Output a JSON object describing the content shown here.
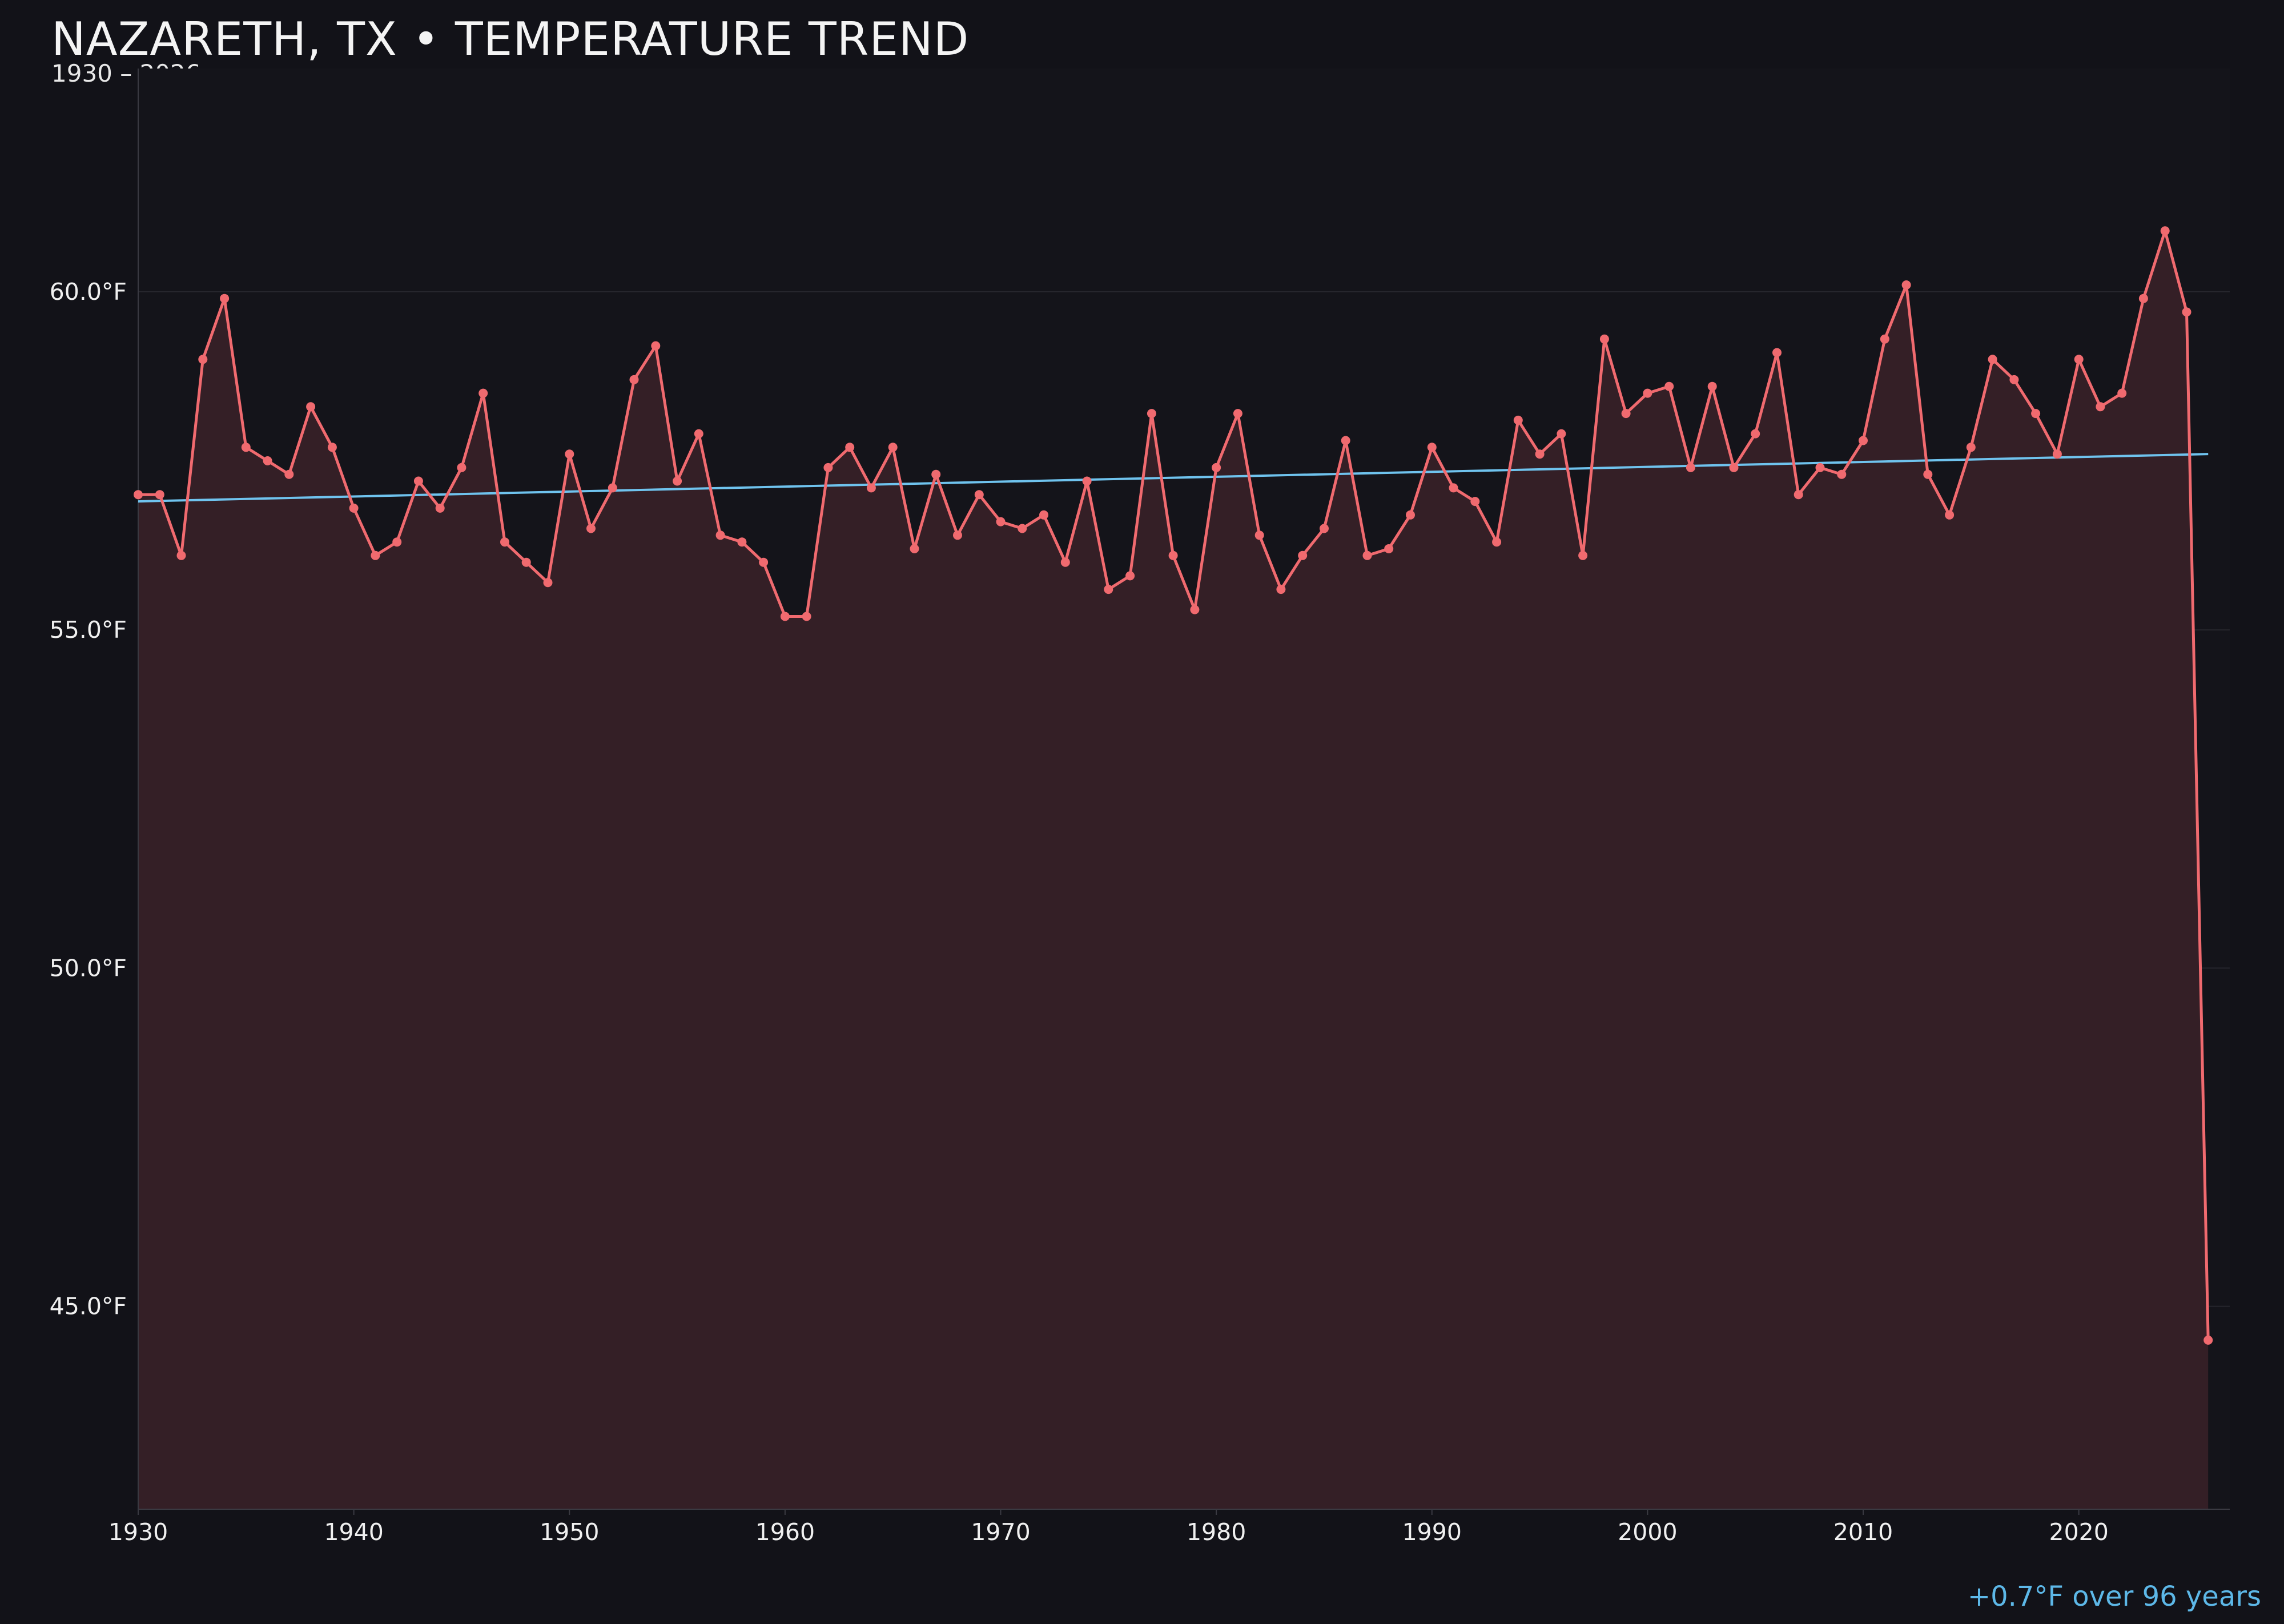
{
  "header": {
    "title": "NAZARETH, TX • TEMPERATURE TREND",
    "subtitle": "1930 – 2026"
  },
  "footnote": "+0.7°F over 96 years",
  "colors": {
    "background": "#121218",
    "plot_background": "#14141a",
    "temperature_line": "#f06a6f",
    "area_fill": "#341f26",
    "trend_line": "#6fc3ee",
    "grid": "#26262d",
    "axis": "#3a3a42"
  },
  "chart_data": {
    "type": "line",
    "title": "NAZARETH, TX • TEMPERATURE TREND",
    "subtitle": "1930 – 2026",
    "xlabel": "",
    "ylabel": "",
    "xlim": [
      1930,
      2027
    ],
    "ylim": [
      42.0,
      63.3
    ],
    "grid": true,
    "legend": "none",
    "x_ticks": [
      1930,
      1940,
      1950,
      1960,
      1970,
      1980,
      1990,
      2000,
      2010,
      2020
    ],
    "x_tick_labels": [
      "1930",
      "1940",
      "1950",
      "1960",
      "1970",
      "1980",
      "1990",
      "2000",
      "2010",
      "2020"
    ],
    "y_ticks": [
      45,
      50,
      55,
      60
    ],
    "y_tick_labels": [
      "45.0°F",
      "50.0°F",
      "55.0°F",
      "60.0°F"
    ],
    "x": [
      1930,
      1931,
      1932,
      1933,
      1934,
      1935,
      1936,
      1937,
      1938,
      1939,
      1940,
      1941,
      1942,
      1943,
      1944,
      1945,
      1946,
      1947,
      1948,
      1949,
      1950,
      1951,
      1952,
      1953,
      1954,
      1955,
      1956,
      1957,
      1958,
      1959,
      1960,
      1961,
      1962,
      1963,
      1964,
      1965,
      1966,
      1967,
      1968,
      1969,
      1970,
      1971,
      1972,
      1973,
      1974,
      1975,
      1976,
      1977,
      1978,
      1979,
      1980,
      1981,
      1982,
      1983,
      1984,
      1985,
      1986,
      1987,
      1988,
      1989,
      1990,
      1991,
      1992,
      1993,
      1994,
      1995,
      1996,
      1997,
      1998,
      1999,
      2000,
      2001,
      2002,
      2003,
      2004,
      2005,
      2006,
      2007,
      2008,
      2009,
      2010,
      2011,
      2012,
      2013,
      2014,
      2015,
      2016,
      2017,
      2018,
      2019,
      2020,
      2021,
      2022,
      2023,
      2024,
      2025,
      2026
    ],
    "series": [
      {
        "values": [
          57.0,
          57.0,
          56.1,
          59.0,
          59.9,
          57.7,
          57.5,
          57.3,
          58.3,
          57.7,
          56.8,
          56.1,
          56.3,
          57.2,
          56.8,
          57.4,
          58.5,
          56.3,
          56.0,
          55.7,
          57.6,
          56.5,
          57.1,
          58.7,
          59.2,
          57.2,
          57.9,
          56.4,
          56.3,
          56.0,
          55.2,
          55.2,
          57.4,
          57.7,
          57.1,
          57.7,
          56.2,
          57.3,
          56.4,
          57.0,
          56.6,
          56.5,
          56.7,
          56.0,
          57.2,
          55.6,
          55.8,
          58.2,
          56.1,
          55.3,
          57.4,
          58.2,
          56.4,
          55.6,
          56.1,
          56.5,
          57.8,
          56.1,
          56.2,
          56.7,
          57.7,
          57.1,
          56.9,
          56.3,
          58.1,
          57.6,
          57.9,
          56.1,
          59.3,
          58.2,
          58.5,
          58.6,
          57.4,
          58.6,
          57.4,
          57.9,
          59.1,
          57.0,
          57.4,
          57.3,
          57.8,
          59.3,
          60.1,
          57.3,
          56.7,
          57.7,
          59.0,
          58.7,
          58.2,
          57.6,
          59.0,
          58.3,
          58.5,
          59.9,
          60.9,
          59.7,
          44.5
        ]
      }
    ],
    "trend": {
      "name": "trend",
      "x": [
        1930,
        2026
      ],
      "y": [
        56.9,
        57.6
      ]
    }
  }
}
